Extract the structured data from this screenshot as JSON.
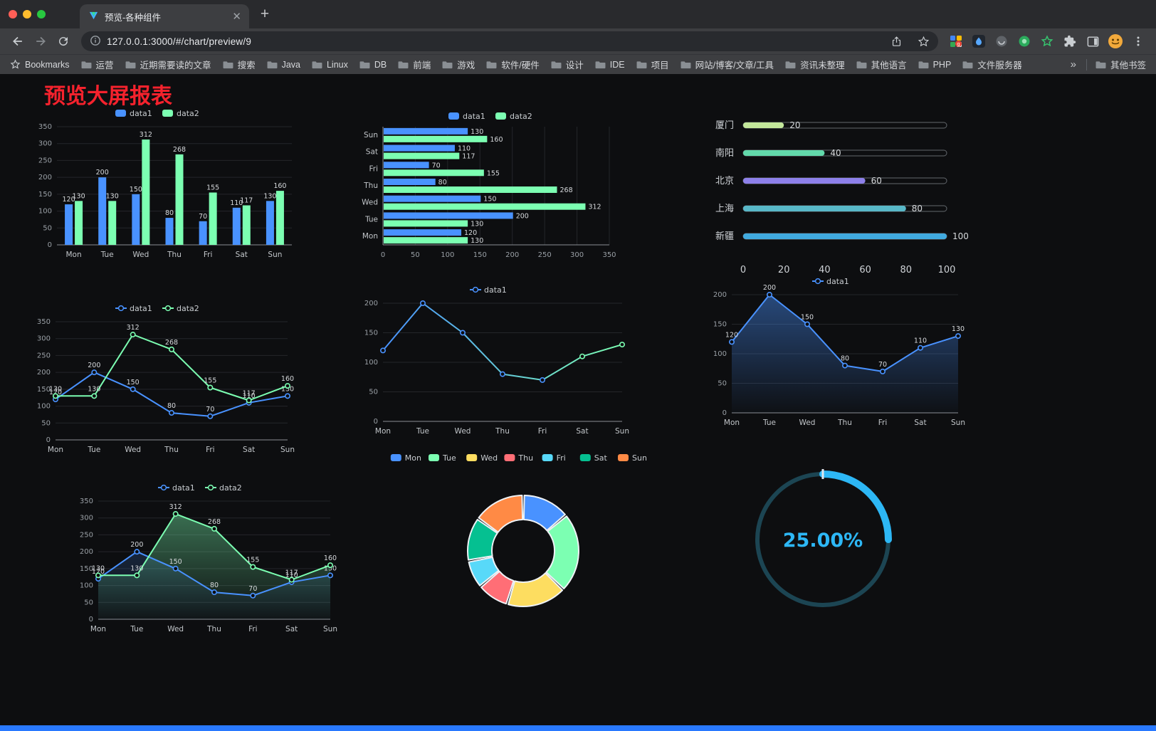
{
  "window": {
    "tab_title": "预览-各种组件",
    "url": "127.0.0.1:3000/#/chart/preview/9"
  },
  "bookmarks_bar": {
    "bookmarks_label": "Bookmarks",
    "folders": [
      "运营",
      "近期需要读的文章",
      "搜索",
      "Java",
      "Linux",
      "DB",
      "前端",
      "游戏",
      "软件/硬件",
      "设计",
      "IDE",
      "项目",
      "网站/博客/文章/工具",
      "资讯未整理",
      "其他语言",
      "PHP",
      "文件服务器"
    ],
    "overflow_label": "»",
    "other_bookmarks_label": "其他书签"
  },
  "page": {
    "title": "预览大屏报表",
    "title_color": "#f5222d",
    "background": "#0d0e10",
    "footer_color": "#2979ff"
  },
  "chart_data": [
    {
      "type": "bar",
      "title": "",
      "legend_position": "top",
      "categories": [
        "Mon",
        "Tue",
        "Wed",
        "Thu",
        "Fri",
        "Sat",
        "Sun"
      ],
      "series": [
        {
          "name": "data1",
          "color": "#4992ff",
          "values": [
            120,
            200,
            150,
            80,
            70,
            110,
            130
          ]
        },
        {
          "name": "data2",
          "color": "#7cffb2",
          "values": [
            130,
            130,
            312,
            268,
            155,
            117,
            160
          ]
        }
      ],
      "ylim": [
        0,
        350
      ],
      "ytick_step": 50,
      "show_values": true,
      "grid": true
    },
    {
      "type": "hbar",
      "title": "",
      "legend_position": "top",
      "categories": [
        "Mon",
        "Tue",
        "Wed",
        "Thu",
        "Fri",
        "Sat",
        "Sun"
      ],
      "series": [
        {
          "name": "data1",
          "color": "#4992ff",
          "values": [
            120,
            200,
            150,
            80,
            70,
            110,
            130
          ]
        },
        {
          "name": "data2",
          "color": "#7cffb2",
          "values": [
            130,
            130,
            312,
            268,
            155,
            117,
            160
          ]
        }
      ],
      "xlim": [
        0,
        350
      ],
      "xtick_step": 50,
      "show_values": true,
      "grid": true
    },
    {
      "type": "progress",
      "title": "",
      "rows": [
        {
          "label": "厦门",
          "value": 20,
          "color": "#c3e79b"
        },
        {
          "label": "南阳",
          "value": 40,
          "color": "#62d9ab"
        },
        {
          "label": "北京",
          "value": 60,
          "color": "#8d80ea"
        },
        {
          "label": "上海",
          "value": 80,
          "color": "#58b8c8"
        },
        {
          "label": "新疆",
          "value": 100,
          "color": "#41aadf"
        }
      ],
      "xlim": [
        0,
        100
      ],
      "xticks": [
        0,
        20,
        40,
        60,
        80,
        100
      ]
    },
    {
      "type": "line",
      "title": "",
      "legend_position": "top",
      "categories": [
        "Mon",
        "Tue",
        "Wed",
        "Thu",
        "Fri",
        "Sat",
        "Sun"
      ],
      "series": [
        {
          "name": "data1",
          "color": "#4992ff",
          "values": [
            120,
            200,
            150,
            80,
            70,
            110,
            130
          ]
        },
        {
          "name": "data2",
          "color": "#7cffb2",
          "values": [
            130,
            130,
            312,
            268,
            155,
            117,
            160
          ]
        }
      ],
      "ylim": [
        0,
        350
      ],
      "ytick_step": 50,
      "show_values": true,
      "grid": true
    },
    {
      "type": "line",
      "title": "",
      "legend_position": "top",
      "categories": [
        "Mon",
        "Tue",
        "Wed",
        "Thu",
        "Fri",
        "Sat",
        "Sun"
      ],
      "series": [
        {
          "name": "data1",
          "color": "#4992ff",
          "color2": "#7cffb2",
          "values": [
            120,
            200,
            150,
            80,
            70,
            110,
            130
          ]
        }
      ],
      "ylim": [
        0,
        200
      ],
      "ytick_step": 50,
      "show_values": false,
      "gradient_line": true,
      "grid": true
    },
    {
      "type": "line",
      "title": "",
      "legend_position": "top",
      "categories": [
        "Mon",
        "Tue",
        "Wed",
        "Thu",
        "Fri",
        "Sat",
        "Sun"
      ],
      "series": [
        {
          "name": "data1",
          "color": "#4992ff",
          "values": [
            120,
            200,
            150,
            80,
            70,
            110,
            130
          ],
          "area": true,
          "area_opacity": 0.45
        }
      ],
      "ylim": [
        0,
        200
      ],
      "ytick_step": 50,
      "show_values": true,
      "grid": true
    },
    {
      "type": "line",
      "title": "",
      "legend_position": "top",
      "categories": [
        "Mon",
        "Tue",
        "Wed",
        "Thu",
        "Fri",
        "Sat",
        "Sun"
      ],
      "series": [
        {
          "name": "data1",
          "color": "#4992ff",
          "values": [
            120,
            200,
            150,
            80,
            70,
            110,
            130
          ],
          "area": true,
          "area_opacity": 0.18
        },
        {
          "name": "data2",
          "color": "#7cffb2",
          "values": [
            130,
            130,
            312,
            268,
            155,
            117,
            160
          ],
          "area": true,
          "area_opacity": 0.4
        }
      ],
      "ylim": [
        0,
        350
      ],
      "ytick_step": 50,
      "show_values": true,
      "grid": true
    },
    {
      "type": "pie",
      "title": "",
      "legend_position": "top",
      "categories": [
        "Mon",
        "Tue",
        "Wed",
        "Thu",
        "Fri",
        "Sat",
        "Sun"
      ],
      "values": [
        120,
        200,
        150,
        80,
        70,
        110,
        130
      ],
      "colors": [
        "#4992ff",
        "#7cffb2",
        "#fddd60",
        "#ff6e76",
        "#58d9f9",
        "#05c091",
        "#ff8a45"
      ]
    },
    {
      "type": "gauge",
      "title": "",
      "value": 25,
      "label": "25.00%",
      "color": "#2db7f5",
      "track_color": "#1c4553"
    }
  ]
}
